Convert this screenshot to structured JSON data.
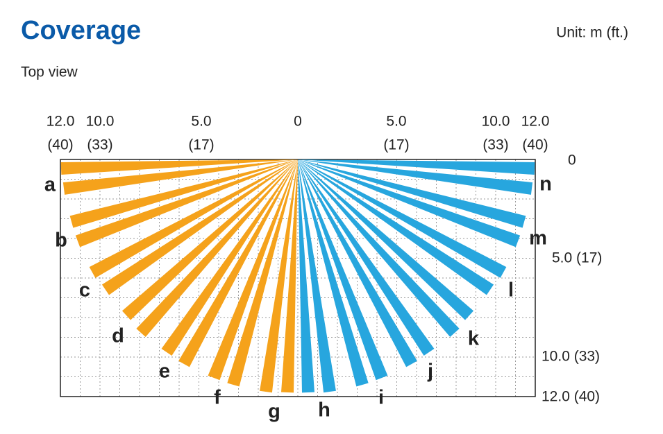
{
  "header": {
    "title": "Coverage",
    "unit": "Unit: m (ft.)",
    "subtitle": "Top view"
  },
  "top_scale": [
    {
      "m": "12.0",
      "ft": "(40)"
    },
    {
      "m": "10.0",
      "ft": "(33)"
    },
    {
      "m": "5.0",
      "ft": "(17)"
    },
    {
      "m": "0",
      "ft": null
    },
    {
      "m": "5.0",
      "ft": "(17)"
    },
    {
      "m": "10.0",
      "ft": "(33)"
    },
    {
      "m": "12.0",
      "ft": "(40)"
    }
  ],
  "side_scale": [
    "0",
    "5.0 (17)",
    "10.0 (33)",
    "12.0 (40)"
  ],
  "zones": [
    "a",
    "b",
    "c",
    "d",
    "e",
    "f",
    "g",
    "h",
    "i",
    "j",
    "k",
    "l",
    "m",
    "n"
  ]
}
